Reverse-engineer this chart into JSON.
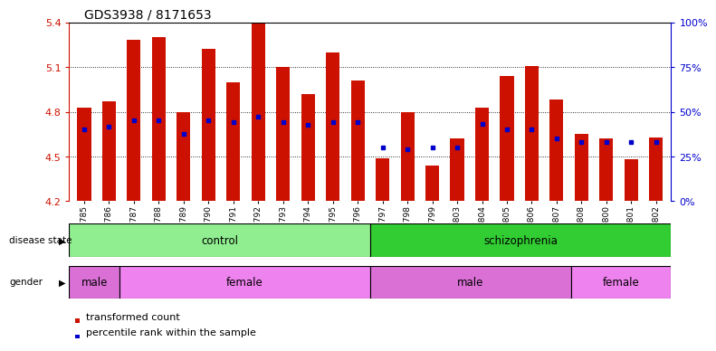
{
  "title": "GDS3938 / 8171653",
  "samples": [
    "GSM630785",
    "GSM630786",
    "GSM630787",
    "GSM630788",
    "GSM630789",
    "GSM630790",
    "GSM630791",
    "GSM630792",
    "GSM630793",
    "GSM630794",
    "GSM630795",
    "GSM630796",
    "GSM630797",
    "GSM630798",
    "GSM630799",
    "GSM630803",
    "GSM630804",
    "GSM630805",
    "GSM630806",
    "GSM630807",
    "GSM630808",
    "GSM630800",
    "GSM630801",
    "GSM630802"
  ],
  "bar_values": [
    4.83,
    4.87,
    5.28,
    5.3,
    4.8,
    5.22,
    5.0,
    5.4,
    5.1,
    4.92,
    5.2,
    5.01,
    4.49,
    4.8,
    4.44,
    4.62,
    4.83,
    5.04,
    5.11,
    4.88,
    4.65,
    4.62,
    4.48,
    4.63
  ],
  "blue_dot_values": [
    4.68,
    4.7,
    4.74,
    4.74,
    4.65,
    4.74,
    4.73,
    4.77,
    4.73,
    4.71,
    4.73,
    4.73,
    4.56,
    4.55,
    4.56,
    4.56,
    4.72,
    4.68,
    4.68,
    4.62,
    4.6,
    4.6,
    4.6,
    4.6
  ],
  "ymin": 4.2,
  "ymax": 5.4,
  "yticks_left": [
    4.2,
    4.5,
    4.8,
    5.1,
    5.4
  ],
  "yticks_right": [
    0,
    25,
    50,
    75,
    100
  ],
  "bar_color": "#CC1100",
  "dot_color": "#0000CC",
  "disease_state_groups": [
    {
      "label": "control",
      "start": 0,
      "end": 11,
      "color": "#90EE90"
    },
    {
      "label": "schizophrenia",
      "start": 12,
      "end": 23,
      "color": "#32CD32"
    }
  ],
  "gender_groups": [
    {
      "label": "male",
      "start": 0,
      "end": 1,
      "color": "#DA70D6"
    },
    {
      "label": "female",
      "start": 2,
      "end": 11,
      "color": "#EE82EE"
    },
    {
      "label": "male",
      "start": 12,
      "end": 19,
      "color": "#DA70D6"
    },
    {
      "label": "female",
      "start": 20,
      "end": 23,
      "color": "#EE82EE"
    }
  ],
  "legend_items": [
    {
      "label": "transformed count",
      "color": "#CC1100"
    },
    {
      "label": "percentile rank within the sample",
      "color": "#0000CC"
    }
  ],
  "grid_yticks": [
    4.5,
    4.8,
    5.1
  ]
}
